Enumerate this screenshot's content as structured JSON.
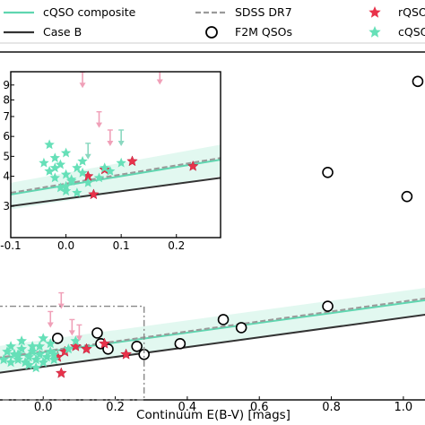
{
  "chart_data": [
    {
      "type": "scatter",
      "xlabel": "Continuum E(B-V) [mags]",
      "ylabel": "",
      "xlim": [
        -0.13,
        1.07
      ],
      "ylim": [
        0.32,
        1.62
      ],
      "xticks": [
        "0.0",
        "0.2",
        "0.4",
        "0.6",
        "0.8",
        "1.0"
      ],
      "xtick_values": [
        0.0,
        0.2,
        0.4,
        0.6,
        0.8,
        1.0
      ],
      "legend": {
        "placement": "top",
        "entries": [
          {
            "label": "cQSO composite",
            "style": "solid-line",
            "color": "#5fd6b0"
          },
          {
            "label": "Case B",
            "style": "solid-line",
            "color": "#333333"
          },
          {
            "label": "SDSS DR7",
            "style": "dashed-line",
            "color": "#9a9a9a"
          },
          {
            "label": "F2M QSOs",
            "style": "open-circle",
            "color": "#000000"
          },
          {
            "label": "rQSOs",
            "style": "star",
            "color": "#e8324a"
          },
          {
            "label": "cQSOs",
            "style": "star",
            "color": "#66e0b8"
          }
        ]
      },
      "lines": {
        "case_b": {
          "x": [
            -0.13,
            1.07
          ],
          "y": [
            0.42,
            0.64
          ]
        },
        "cqso_composite": {
          "x": [
            -0.13,
            1.07
          ],
          "y": [
            0.474,
            0.694
          ]
        },
        "sdss_dr7": {
          "x": [
            -0.13,
            1.07
          ],
          "y": [
            0.477,
            0.701
          ]
        },
        "band_upper": {
          "x": [
            -0.13,
            1.07
          ],
          "y": [
            0.52,
            0.74
          ]
        },
        "band_lower": {
          "x": [
            -0.13,
            1.07
          ],
          "y": [
            0.42,
            0.64
          ]
        }
      },
      "inset_box": {
        "x": [
          -0.13,
          0.28
        ],
        "y": [
          0.32,
          0.67
        ]
      },
      "series": [
        {
          "name": "F2M QSOs",
          "marker": "circle",
          "x": [
            0.04,
            0.15,
            0.16,
            0.18,
            0.26,
            0.28,
            0.38,
            0.5,
            0.55,
            0.79,
            0.26,
            0.79,
            1.01,
            1.04
          ],
          "y": [
            0.55,
            0.57,
            0.53,
            0.51,
            0.52,
            0.49,
            0.53,
            0.62,
            0.59,
            0.67,
            0.96,
            1.17,
            1.08,
            1.51
          ]
        },
        {
          "name": "rQSOs",
          "marker": "star",
          "x": [
            0.04,
            0.06,
            0.09,
            0.12,
            0.17,
            0.23,
            0.05
          ],
          "y": [
            0.48,
            0.5,
            0.52,
            0.51,
            0.53,
            0.49,
            0.42
          ]
        },
        {
          "name": "cQSOs",
          "marker": "star",
          "x": [
            -0.11,
            -0.1,
            -0.09,
            -0.08,
            -0.07,
            -0.06,
            -0.05,
            -0.04,
            -0.03,
            -0.02,
            -0.01,
            0.0,
            0.01,
            0.02,
            0.03,
            -0.06,
            -0.03,
            0.0,
            0.02,
            -0.09,
            -0.07,
            -0.04,
            -0.01,
            0.03,
            0.07,
            0.09,
            -0.02
          ],
          "y": [
            0.47,
            0.5,
            0.46,
            0.49,
            0.47,
            0.51,
            0.46,
            0.48,
            0.5,
            0.47,
            0.49,
            0.46,
            0.48,
            0.5,
            0.47,
            0.54,
            0.52,
            0.55,
            0.53,
            0.52,
            0.49,
            0.45,
            0.52,
            0.49,
            0.51,
            0.54,
            0.44
          ]
        },
        {
          "name": "rQSO upper limits",
          "marker": "arrow",
          "color": "#f0a0b8",
          "x": [
            0.05,
            0.08,
            0.1,
            0.02
          ],
          "y": [
            0.69,
            0.59,
            0.57,
            0.62
          ]
        }
      ]
    },
    {
      "type": "scatter",
      "xlim": [
        -0.1,
        0.28
      ],
      "ylim": [
        0.0,
        1.0
      ],
      "xticks": [
        "-0.1",
        "0.0",
        "0.1",
        "0.2"
      ],
      "xtick_values": [
        -0.1,
        0.0,
        0.1,
        0.2
      ],
      "yticks": [
        "3",
        "4",
        "5",
        "6",
        "7",
        "8",
        "9"
      ],
      "ytick_values": [
        0.19,
        0.37,
        0.49,
        0.61,
        0.73,
        0.83,
        0.92
      ],
      "lines": {
        "case_b": {
          "x": [
            -0.1,
            0.28
          ],
          "y": [
            0.19,
            0.36
          ]
        },
        "cqso_composite": {
          "x": [
            -0.1,
            0.28
          ],
          "y": [
            0.26,
            0.47
          ]
        },
        "sdss_dr7": {
          "x": [
            -0.1,
            0.28
          ],
          "y": [
            0.27,
            0.48
          ]
        },
        "band_upper": {
          "x": [
            -0.1,
            0.28
          ],
          "y": [
            0.33,
            0.56
          ]
        },
        "band_lower": {
          "x": [
            -0.1,
            0.28
          ],
          "y": [
            0.17,
            0.37
          ]
        }
      },
      "series": [
        {
          "name": "rQSOs",
          "marker": "star",
          "x": [
            0.04,
            0.05,
            0.07,
            0.12,
            0.23
          ],
          "y": [
            0.37,
            0.26,
            0.41,
            0.46,
            0.43
          ]
        },
        {
          "name": "cQSOs",
          "marker": "star",
          "x": [
            -0.04,
            -0.03,
            -0.02,
            -0.02,
            -0.01,
            0.0,
            0.0,
            0.01,
            0.02,
            0.03,
            -0.01,
            0.0,
            0.01,
            0.02,
            0.04,
            0.06,
            0.07,
            0.08,
            0.1,
            -0.03,
            -0.02,
            0.0,
            0.03
          ],
          "y": [
            0.45,
            0.4,
            0.42,
            0.36,
            0.44,
            0.38,
            0.31,
            0.35,
            0.42,
            0.39,
            0.3,
            0.28,
            0.34,
            0.27,
            0.33,
            0.36,
            0.42,
            0.4,
            0.45,
            0.56,
            0.48,
            0.51,
            0.46
          ]
        },
        {
          "name": "rQSO upper limits",
          "marker": "arrow",
          "color": "#f0a0b8",
          "x": [
            0.03,
            0.06,
            0.08,
            0.17
          ],
          "y": [
            0.95,
            0.71,
            0.6,
            0.97
          ]
        },
        {
          "name": "cQSO upper limits",
          "marker": "arrow",
          "color": "#8ad8c0",
          "x": [
            0.04,
            0.1
          ],
          "y": [
            0.52,
            0.6
          ]
        }
      ]
    }
  ]
}
